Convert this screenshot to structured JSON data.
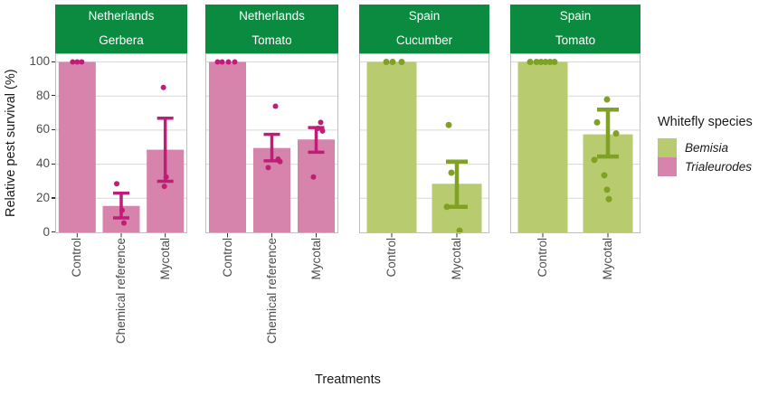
{
  "y_axis": {
    "title": "Relative pest survival (%)",
    "ticks": [
      "0",
      "20",
      "40",
      "60",
      "80",
      "100"
    ]
  },
  "x_axis": {
    "title": "Treatments"
  },
  "legend": {
    "title": "Whitefly species",
    "items": [
      {
        "label": "Bemisia",
        "color": "#b9cb6f"
      },
      {
        "label": "Trialeurodes",
        "color": "#d684ac"
      }
    ]
  },
  "colors": {
    "facet_strip_background": "#0b8b3f",
    "facet_strip_text": "#ffffff",
    "panel_background": "#ffffff",
    "panel_border": "#c0c0c0",
    "gridline": "#d9d9d9",
    "axis_text": "#4d4d4d",
    "axis_title": "#1a1a1a",
    "tick_mark": "#333333"
  },
  "chart_data": {
    "type": "bar",
    "title": "",
    "xlabel": "Treatments",
    "ylabel": "Relative pest survival (%)",
    "ylim": [
      0,
      100
    ],
    "grid": "horizontal-major",
    "legend_position": "right",
    "species_styles": {
      "Trialeurodes": {
        "fill": "#d684ac",
        "accent": "#bf1d78"
      },
      "Bemisia": {
        "fill": "#b9cb6f",
        "accent": "#80a125"
      }
    },
    "facets": [
      {
        "country": "Netherlands",
        "crop": "Gerbera",
        "species": "Trialeurodes",
        "bars": [
          {
            "treatment": "Control",
            "mean": 100,
            "err": null,
            "points": [
              {
                "v": 100,
                "dx": -5
              },
              {
                "v": 100,
                "dx": 0
              },
              {
                "v": 100,
                "dx": 5
              }
            ]
          },
          {
            "treatment": "Chemical reference",
            "mean": 15.5,
            "err": [
              8.5,
              23
            ],
            "points": [
              {
                "v": 28.5,
                "dx": -5
              },
              {
                "v": 13,
                "dx": 1
              },
              {
                "v": 5.5,
                "dx": 3
              }
            ]
          },
          {
            "treatment": "Mycotal",
            "mean": 48.5,
            "err": [
              30,
              67
            ],
            "points": [
              {
                "v": 85,
                "dx": -2
              },
              {
                "v": 32.5,
                "dx": 1
              },
              {
                "v": 27,
                "dx": -1
              }
            ]
          }
        ]
      },
      {
        "country": "Netherlands",
        "crop": "Tomato",
        "species": "Trialeurodes",
        "bars": [
          {
            "treatment": "Control",
            "mean": 100,
            "err": null,
            "points": [
              {
                "v": 100,
                "dx": -11
              },
              {
                "v": 100,
                "dx": -6
              },
              {
                "v": 100,
                "dx": 1
              },
              {
                "v": 100,
                "dx": 8
              }
            ]
          },
          {
            "treatment": "Chemical reference",
            "mean": 49.5,
            "err": [
              42,
              57.5
            ],
            "points": [
              {
                "v": 74,
                "dx": 4
              },
              {
                "v": 43,
                "dx": 7
              },
              {
                "v": 41.5,
                "dx": 9
              },
              {
                "v": 38,
                "dx": -4
              }
            ]
          },
          {
            "treatment": "Mycotal",
            "mean": 54.5,
            "err": [
              47,
              61.5
            ],
            "points": [
              {
                "v": 64.5,
                "dx": 5
              },
              {
                "v": 61,
                "dx": 2
              },
              {
                "v": 59.5,
                "dx": 7
              },
              {
                "v": 32.5,
                "dx": -3
              }
            ]
          }
        ]
      },
      {
        "country": "Spain",
        "crop": "Cucumber",
        "species": "Bemisia",
        "bars": [
          {
            "treatment": "Control",
            "mean": 100,
            "err": null,
            "points": [
              {
                "v": 100,
                "dx": -6
              },
              {
                "v": 100,
                "dx": 1
              },
              {
                "v": 100,
                "dx": 11
              }
            ]
          },
          {
            "treatment": "Mycotal",
            "mean": 28.5,
            "err": [
              15,
              41.5
            ],
            "points": [
              {
                "v": 63,
                "dx": -9
              },
              {
                "v": 35,
                "dx": -6
              },
              {
                "v": 15,
                "dx": -11
              },
              {
                "v": 1,
                "dx": 3
              }
            ]
          }
        ]
      },
      {
        "country": "Spain",
        "crop": "Tomato",
        "species": "Bemisia",
        "bars": [
          {
            "treatment": "Control",
            "mean": 100,
            "err": null,
            "points": [
              {
                "v": 100,
                "dx": -14
              },
              {
                "v": 100,
                "dx": -7
              },
              {
                "v": 100,
                "dx": -2
              },
              {
                "v": 100,
                "dx": 3
              },
              {
                "v": 100,
                "dx": 8
              },
              {
                "v": 100,
                "dx": 13
              }
            ]
          },
          {
            "treatment": "Mycotal",
            "mean": 57.5,
            "err": [
              44.5,
              72
            ],
            "points": [
              {
                "v": 78,
                "dx": -1
              },
              {
                "v": 64.5,
                "dx": -12
              },
              {
                "v": 58,
                "dx": 9
              },
              {
                "v": 42.5,
                "dx": -15
              },
              {
                "v": 33.5,
                "dx": -4
              },
              {
                "v": 25,
                "dx": -1
              },
              {
                "v": 19.5,
                "dx": 1
              }
            ]
          }
        ]
      }
    ]
  }
}
